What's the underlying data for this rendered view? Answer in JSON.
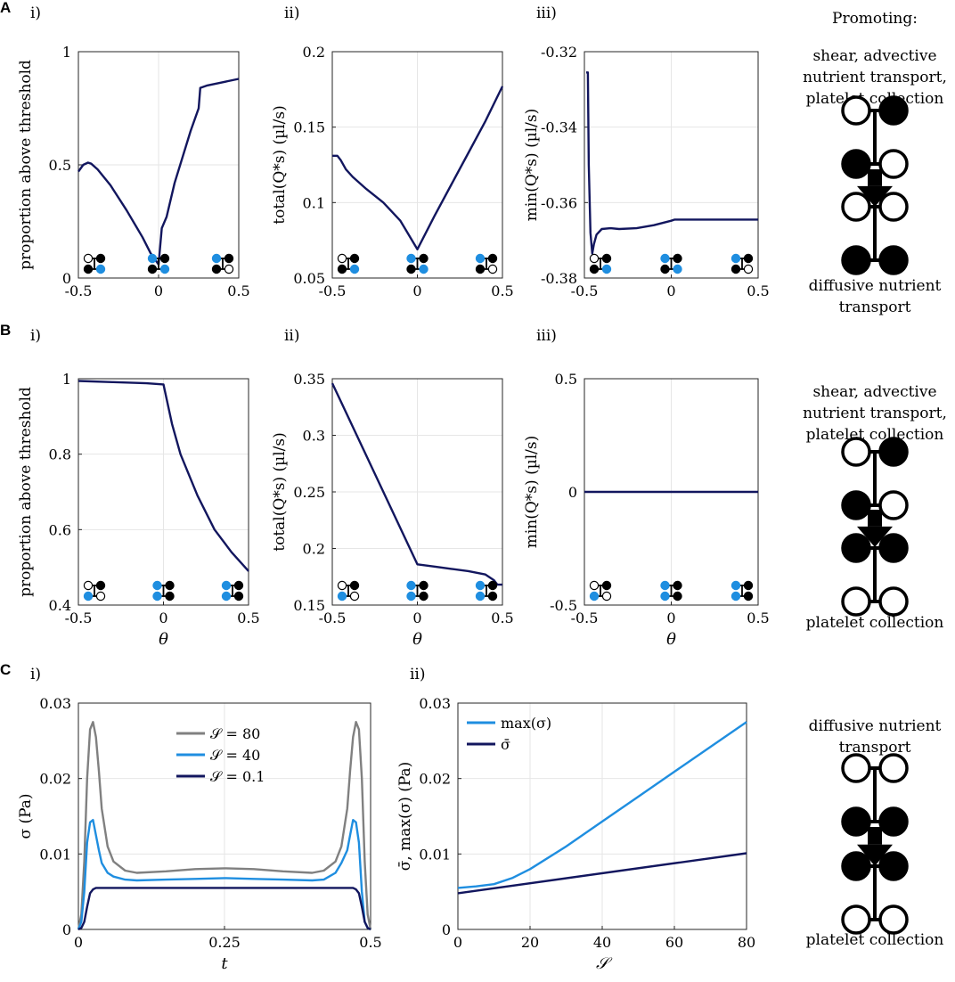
{
  "colors": {
    "dark_navy": "#12165e",
    "light_blue": "#1f8ee0",
    "gray": "#808080",
    "grid": "#e6e6e6",
    "axis": "#262626",
    "black": "#000000"
  },
  "panel_letters": [
    "A",
    "B",
    "C"
  ],
  "side_text": {
    "promoting": "Promoting:",
    "a_top": [
      "shear, advective",
      "nutrient transport,",
      "platelet collection"
    ],
    "a_bottom": [
      "diffusive nutrient",
      "transport"
    ],
    "b_top": [
      "shear, advective",
      "nutrient transport,",
      "platelet collection"
    ],
    "b_bottom": [
      "platelet collection"
    ],
    "c_top": [
      "diffusive nutrient",
      "transport"
    ],
    "c_bottom": [
      "platelet collection"
    ]
  },
  "chart_data": [
    {
      "id": "A-i",
      "type": "line",
      "roman": "i)",
      "xlim": [
        -0.5,
        0.5
      ],
      "ylim": [
        0,
        1
      ],
      "xticks": [
        -0.5,
        0,
        0.5
      ],
      "xticklabels": [
        "-0.5",
        "0",
        "0.5"
      ],
      "yticks": [
        0,
        0.5,
        1
      ],
      "yticklabels": [
        "0",
        "0.5",
        "1"
      ],
      "ylabel": "proportion above threshold",
      "xlabel": "",
      "grid": true,
      "series": [
        {
          "name": "proportion",
          "color": "dark_navy",
          "x": [
            -0.5,
            -0.47,
            -0.44,
            -0.42,
            -0.38,
            -0.3,
            -0.2,
            -0.1,
            -0.05,
            0,
            0.02,
            0.05,
            0.1,
            0.2,
            0.25,
            0.26,
            0.3,
            0.4,
            0.5
          ],
          "y": [
            0.47,
            0.5,
            0.51,
            0.505,
            0.48,
            0.41,
            0.3,
            0.18,
            0.11,
            0.06,
            0.22,
            0.27,
            0.42,
            0.65,
            0.75,
            0.84,
            0.85,
            0.865,
            0.88
          ]
        }
      ]
    },
    {
      "id": "A-ii",
      "type": "line",
      "roman": "ii)",
      "xlim": [
        -0.5,
        0.5
      ],
      "ylim": [
        0.05,
        0.2
      ],
      "xticks": [
        -0.5,
        0,
        0.5
      ],
      "xticklabels": [
        "-0.5",
        "0",
        "0.5"
      ],
      "yticks": [
        0.05,
        0.1,
        0.15,
        0.2
      ],
      "yticklabels": [
        "0.05",
        "0.1",
        "0.15",
        "0.2"
      ],
      "ylabel": "total(Q*s) (µl/s)",
      "xlabel": "",
      "grid": true,
      "series": [
        {
          "name": "total",
          "color": "dark_navy",
          "x": [
            -0.5,
            -0.47,
            -0.45,
            -0.42,
            -0.38,
            -0.3,
            -0.2,
            -0.1,
            0,
            0.1,
            0.2,
            0.3,
            0.4,
            0.5
          ],
          "y": [
            0.131,
            0.131,
            0.128,
            0.122,
            0.117,
            0.109,
            0.1,
            0.088,
            0.069,
            0.091,
            0.112,
            0.133,
            0.154,
            0.177
          ]
        }
      ]
    },
    {
      "id": "A-iii",
      "type": "line",
      "roman": "iii)",
      "xlim": [
        -0.5,
        0.5
      ],
      "ylim": [
        -0.38,
        -0.32
      ],
      "xticks": [
        -0.5,
        0,
        0.5
      ],
      "xticklabels": [
        "-0.5",
        "0",
        "0.5"
      ],
      "yticks": [
        -0.38,
        -0.36,
        -0.34,
        -0.32
      ],
      "yticklabels": [
        "-0.38",
        "-0.36",
        "-0.34",
        "-0.32"
      ],
      "ylabel": "min(Q*s) (µl/s)",
      "xlabel": "",
      "grid": true,
      "series": [
        {
          "name": "min",
          "color": "dark_navy",
          "x": [
            -0.49,
            -0.48,
            -0.475,
            -0.465,
            -0.455,
            -0.445,
            -0.43,
            -0.4,
            -0.35,
            -0.3,
            -0.2,
            -0.1,
            0,
            0.02,
            0.1,
            0.2,
            0.3,
            0.4,
            0.5
          ],
          "y": [
            -0.3255,
            -0.3255,
            -0.35,
            -0.368,
            -0.3735,
            -0.371,
            -0.3685,
            -0.367,
            -0.3668,
            -0.367,
            -0.3668,
            -0.366,
            -0.3648,
            -0.3645,
            -0.3645,
            -0.3645,
            -0.3645,
            -0.3645,
            -0.3645
          ]
        }
      ]
    },
    {
      "id": "B-i",
      "type": "line",
      "roman": "i)",
      "xlim": [
        -0.5,
        0.5
      ],
      "ylim": [
        0.4,
        1
      ],
      "xticks": [
        -0.5,
        0,
        0.5
      ],
      "xticklabels": [
        "-0.5",
        "0",
        "0.5"
      ],
      "yticks": [
        0.4,
        0.6,
        0.8,
        1
      ],
      "yticklabels": [
        "0.4",
        "0.6",
        "0.8",
        "1"
      ],
      "ylabel": "proportion above threshold",
      "xlabel": "θ",
      "grid": true,
      "series": [
        {
          "name": "proportion",
          "color": "dark_navy",
          "x": [
            -0.5,
            -0.3,
            -0.1,
            0,
            0.05,
            0.1,
            0.2,
            0.3,
            0.4,
            0.5
          ],
          "y": [
            0.994,
            0.991,
            0.988,
            0.985,
            0.88,
            0.8,
            0.69,
            0.6,
            0.54,
            0.49
          ]
        }
      ]
    },
    {
      "id": "B-ii",
      "type": "line",
      "roman": "ii)",
      "xlim": [
        -0.5,
        0.5
      ],
      "ylim": [
        0.15,
        0.35
      ],
      "xticks": [
        -0.5,
        0,
        0.5
      ],
      "xticklabels": [
        "-0.5",
        "0",
        "0.5"
      ],
      "yticks": [
        0.15,
        0.2,
        0.25,
        0.3,
        0.35
      ],
      "yticklabels": [
        "0.15",
        "0.2",
        "0.25",
        "0.3",
        "0.35"
      ],
      "ylabel": "total(Q*s) (µl/s)",
      "xlabel": "θ",
      "grid": true,
      "series": [
        {
          "name": "total",
          "color": "dark_navy",
          "x": [
            -0.5,
            -0.25,
            0,
            0.1,
            0.2,
            0.3,
            0.4,
            0.45,
            0.47,
            0.5
          ],
          "y": [
            0.346,
            0.266,
            0.186,
            0.184,
            0.182,
            0.18,
            0.177,
            0.172,
            0.168,
            0.168
          ]
        }
      ]
    },
    {
      "id": "B-iii",
      "type": "line",
      "roman": "iii)",
      "xlim": [
        -0.5,
        0.5
      ],
      "ylim": [
        -0.5,
        0.5
      ],
      "xticks": [
        -0.5,
        0,
        0.5
      ],
      "xticklabels": [
        "-0.5",
        "0",
        "0.5"
      ],
      "yticks": [
        -0.5,
        0,
        0.5
      ],
      "yticklabels": [
        "-0.5",
        "0",
        "0.5"
      ],
      "ylabel": "min(Q*s) (µl/s)",
      "xlabel": "θ",
      "grid": true,
      "series": [
        {
          "name": "min",
          "color": "dark_navy",
          "x": [
            -0.5,
            0.5
          ],
          "y": [
            0,
            0
          ]
        }
      ]
    },
    {
      "id": "C-i",
      "type": "line",
      "roman": "i)",
      "xlim": [
        0,
        0.5
      ],
      "ylim": [
        0,
        0.03
      ],
      "xticks": [
        0,
        0.25,
        0.5
      ],
      "xticklabels": [
        "0",
        "0.25",
        "0.5"
      ],
      "yticks": [
        0,
        0.01,
        0.02,
        0.03
      ],
      "yticklabels": [
        "0",
        "0.01",
        "0.02",
        "0.03"
      ],
      "ylabel": "σ (Pa)",
      "xlabel": "t",
      "grid": true,
      "legend": "top-center",
      "series": [
        {
          "name": "𝒮 = 80",
          "color": "gray",
          "x": [
            0,
            0.005,
            0.01,
            0.015,
            0.02,
            0.025,
            0.03,
            0.035,
            0.04,
            0.05,
            0.06,
            0.08,
            0.1,
            0.15,
            0.2,
            0.25,
            0.3,
            0.35,
            0.4,
            0.42,
            0.44,
            0.45,
            0.46,
            0.465,
            0.47,
            0.475,
            0.48,
            0.485,
            0.49,
            0.495,
            0.5
          ],
          "y": [
            0,
            0.002,
            0.009,
            0.02,
            0.0265,
            0.0275,
            0.0255,
            0.021,
            0.016,
            0.011,
            0.009,
            0.0078,
            0.0075,
            0.0077,
            0.008,
            0.0081,
            0.008,
            0.0077,
            0.0075,
            0.0078,
            0.009,
            0.011,
            0.016,
            0.021,
            0.0255,
            0.0275,
            0.0265,
            0.02,
            0.009,
            0.002,
            0
          ]
        },
        {
          "name": "𝒮 = 40",
          "color": "light_blue",
          "x": [
            0,
            0.005,
            0.01,
            0.015,
            0.02,
            0.025,
            0.03,
            0.035,
            0.04,
            0.05,
            0.06,
            0.08,
            0.1,
            0.15,
            0.2,
            0.25,
            0.3,
            0.35,
            0.4,
            0.42,
            0.44,
            0.45,
            0.46,
            0.465,
            0.47,
            0.475,
            0.48,
            0.485,
            0.49,
            0.495,
            0.5
          ],
          "y": [
            0,
            0.001,
            0.005,
            0.0115,
            0.0142,
            0.0145,
            0.0125,
            0.0105,
            0.0088,
            0.0075,
            0.007,
            0.0066,
            0.0065,
            0.0066,
            0.0067,
            0.0068,
            0.0067,
            0.0066,
            0.0065,
            0.0066,
            0.0075,
            0.0088,
            0.0105,
            0.0125,
            0.0145,
            0.0142,
            0.0115,
            0.005,
            0.001,
            0.0002,
            0
          ]
        },
        {
          "name": "𝒮 = 0.1",
          "color": "dark_navy",
          "x": [
            0,
            0.005,
            0.01,
            0.015,
            0.02,
            0.025,
            0.03,
            0.04,
            0.05,
            0.1,
            0.2,
            0.25,
            0.3,
            0.4,
            0.45,
            0.46,
            0.47,
            0.475,
            0.48,
            0.485,
            0.49,
            0.495,
            0.5
          ],
          "y": [
            0,
            0.0002,
            0.001,
            0.003,
            0.0048,
            0.0053,
            0.0055,
            0.0055,
            0.0055,
            0.0055,
            0.0055,
            0.0055,
            0.0055,
            0.0055,
            0.0055,
            0.0055,
            0.0055,
            0.0053,
            0.0048,
            0.003,
            0.001,
            0.0002,
            0
          ]
        }
      ]
    },
    {
      "id": "C-ii",
      "type": "line",
      "roman": "ii)",
      "xlim": [
        0,
        80
      ],
      "ylim": [
        0,
        0.03
      ],
      "xticks": [
        0,
        20,
        40,
        60,
        80
      ],
      "xticklabels": [
        "0",
        "20",
        "40",
        "60",
        "80"
      ],
      "yticks": [
        0,
        0.01,
        0.02,
        0.03
      ],
      "yticklabels": [
        "0",
        "0.01",
        "0.02",
        "0.03"
      ],
      "ylabel": "σ̄, max(σ) (Pa)",
      "xlabel": "𝒮",
      "grid": true,
      "legend": "top-left",
      "series": [
        {
          "name": "max(σ)",
          "color": "light_blue",
          "x": [
            0,
            5,
            10,
            15,
            20,
            30,
            40,
            50,
            60,
            70,
            80
          ],
          "y": [
            0.0055,
            0.0057,
            0.006,
            0.0068,
            0.008,
            0.011,
            0.0143,
            0.0176,
            0.0209,
            0.0242,
            0.0275
          ]
        },
        {
          "name": "σ̄",
          "color": "dark_navy",
          "x": [
            0,
            80
          ],
          "y": [
            0.0048,
            0.0101
          ]
        }
      ]
    }
  ]
}
